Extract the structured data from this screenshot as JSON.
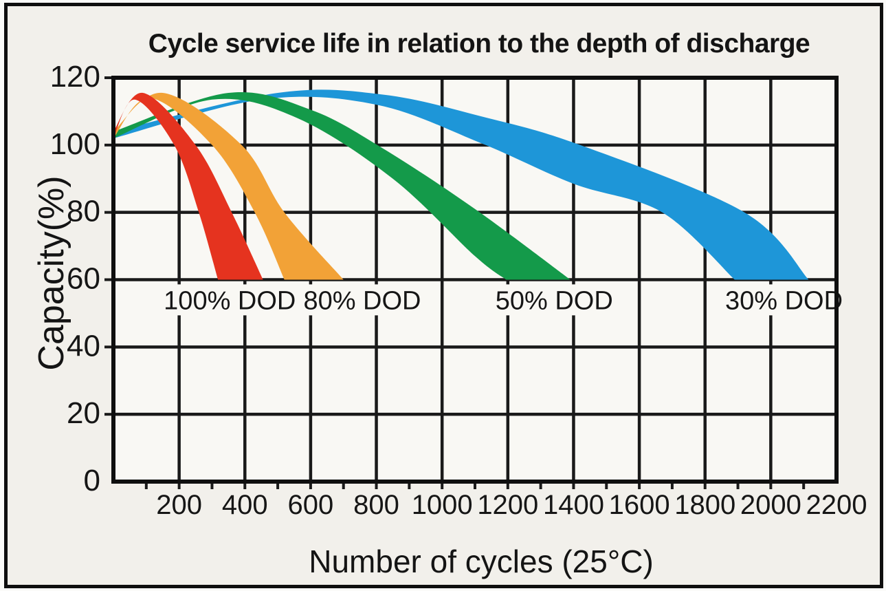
{
  "frame": {
    "background": "#f2f0eb",
    "border_color": "#0f0f0f"
  },
  "chart_data": {
    "type": "area",
    "title": "Cycle service life in relation to the depth of discharge",
    "xlabel": "Number of cycles (25°C)",
    "ylabel": "Capacity(%)",
    "xlim": [
      0,
      2200
    ],
    "ylim": [
      0,
      120
    ],
    "x_ticks": [
      200,
      400,
      600,
      800,
      1000,
      1200,
      1400,
      1600,
      1800,
      2000,
      2200
    ],
    "x_minor_tick_step": 100,
    "y_ticks": [
      0,
      20,
      40,
      60,
      80,
      100,
      120
    ],
    "grid": "major gridlines every 200 cycles and every 20% capacity",
    "legend_position": "labels inside plot below each band",
    "bands": [
      {
        "name": "30% DOD",
        "color": "#1e96d8",
        "label_x": 2040,
        "label_capacity": 54,
        "upper": [
          [
            0,
            104
          ],
          [
            500,
            115.5
          ],
          [
            820,
            115
          ],
          [
            1120,
            108.5
          ],
          [
            1420,
            100
          ],
          [
            1920,
            80
          ],
          [
            2115,
            60
          ]
        ],
        "lower": [
          [
            0,
            102
          ],
          [
            450,
            113.5
          ],
          [
            800,
            112
          ],
          [
            1120,
            100.5
          ],
          [
            1400,
            88.5
          ],
          [
            1670,
            80
          ],
          [
            1890,
            60
          ]
        ]
      },
      {
        "name": "50% DOD",
        "color": "#149a4a",
        "label_x": 1341,
        "label_capacity": 54,
        "upper": [
          [
            0,
            104
          ],
          [
            350,
            115.5
          ],
          [
            600,
            110.5
          ],
          [
            820,
            99
          ],
          [
            1100,
            81
          ],
          [
            1390,
            60
          ]
        ],
        "lower": [
          [
            0,
            102
          ],
          [
            300,
            113.5
          ],
          [
            560,
            108
          ],
          [
            850,
            90
          ],
          [
            1100,
            67
          ],
          [
            1195,
            60
          ]
        ]
      },
      {
        "name": "80% DOD",
        "color": "#f2a237",
        "label_x": 757,
        "label_capacity": 54,
        "upper": [
          [
            0,
            104
          ],
          [
            150,
            115.5
          ],
          [
            390,
            100
          ],
          [
            520,
            80
          ],
          [
            700,
            60
          ]
        ],
        "lower": [
          [
            0,
            102
          ],
          [
            110,
            114
          ],
          [
            300,
            100
          ],
          [
            430,
            80
          ],
          [
            520,
            60
          ]
        ]
      },
      {
        "name": "100% DOD",
        "color": "#e5331f",
        "label_x": 354,
        "label_capacity": 54,
        "upper": [
          [
            0,
            104
          ],
          [
            90,
            115.5
          ],
          [
            250,
            100
          ],
          [
            360,
            80
          ],
          [
            455,
            60
          ]
        ],
        "lower": [
          [
            0,
            102
          ],
          [
            65,
            113.5
          ],
          [
            185,
            100
          ],
          [
            260,
            80
          ],
          [
            318,
            60
          ]
        ]
      }
    ]
  }
}
